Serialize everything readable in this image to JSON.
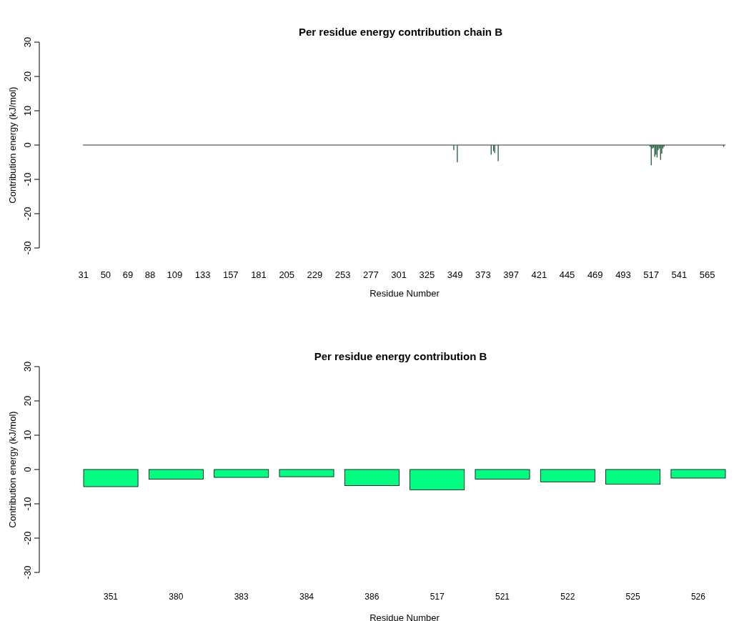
{
  "chart_data": [
    {
      "type": "bar",
      "title": "Per residue energy contribution chain B",
      "xlabel": "Residue Number",
      "ylabel": "Contribution energy (kJ/mol)",
      "x": [
        348,
        351,
        380,
        382,
        383,
        386,
        516,
        517,
        518,
        519,
        520,
        521,
        522,
        523,
        524,
        525,
        526,
        527,
        528,
        579
      ],
      "values": [
        -1.5,
        -5,
        -2.8,
        -1.8,
        -2.3,
        -4.7,
        -0.5,
        -5.9,
        -1,
        -0.8,
        -3.4,
        -2.8,
        -3.6,
        -1.5,
        -1,
        -4.3,
        -2.5,
        -1,
        -0.5,
        -0.5
      ],
      "color": "#1e5b3e",
      "xlim": [
        30.5,
        580.5
      ],
      "xticks": [
        31,
        50,
        69,
        88,
        109,
        133,
        157,
        181,
        205,
        229,
        253,
        277,
        301,
        325,
        349,
        373,
        397,
        421,
        445,
        469,
        493,
        517,
        541,
        565
      ],
      "ylim": [
        -30,
        30
      ],
      "yticks": [
        -30,
        -20,
        -10,
        0,
        10,
        20,
        30
      ],
      "ref_lines": [
        {
          "axis": "y",
          "value": 0,
          "color": "#333333"
        }
      ]
    },
    {
      "type": "bar",
      "title": "Per residue energy contribution B",
      "xlabel": "Residue Number",
      "ylabel": "Contribution energy (kJ/mol)",
      "categories": [
        "351",
        "380",
        "383",
        "384",
        "386",
        "517",
        "521",
        "522",
        "525",
        "526"
      ],
      "values": [
        -5,
        -2.8,
        -2.3,
        -2.1,
        -4.7,
        -5.9,
        -2.8,
        -3.6,
        -4.3,
        -2.5
      ],
      "color": "#00ff80",
      "ylim": [
        -30,
        30
      ],
      "yticks": [
        -30,
        -20,
        -10,
        0,
        10,
        20,
        30
      ]
    }
  ]
}
